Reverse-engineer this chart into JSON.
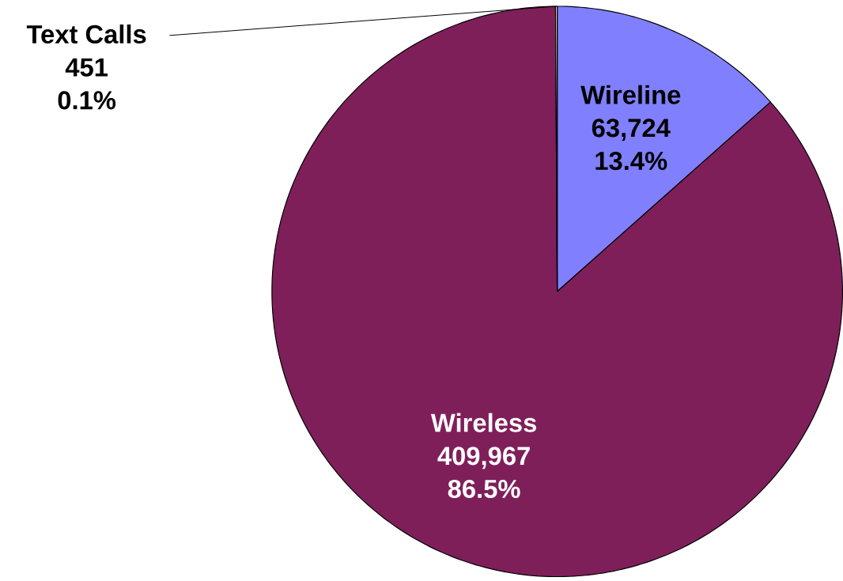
{
  "chart_data": {
    "type": "pie",
    "categories": [
      "Wireline",
      "Wireless",
      "Text Calls"
    ],
    "values": [
      63724,
      409967,
      451
    ],
    "colors": [
      "#8080ff",
      "#7f1f5a",
      "#ffffc0"
    ],
    "value_labels": [
      "63,724",
      "409,967",
      "451"
    ],
    "annotations": [
      "13.4%",
      "86.5%",
      "0.1%"
    ]
  }
}
